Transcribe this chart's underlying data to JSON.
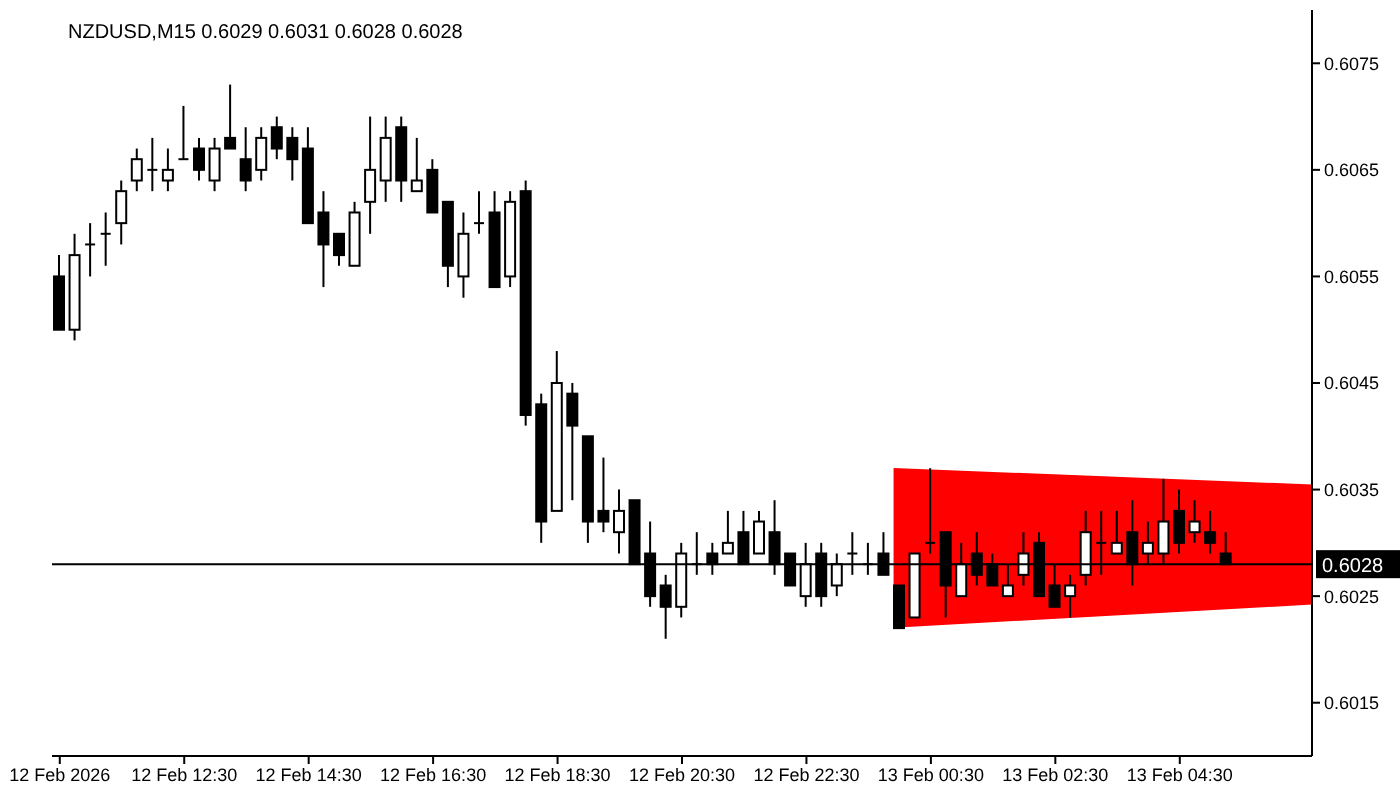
{
  "chart_data": {
    "type": "candlestick",
    "title": "NZDUSD,M15  0.6029 0.6031 0.6028 0.6028",
    "categories": [
      "12 Feb 2026",
      null,
      null,
      null,
      null,
      null,
      null,
      null,
      "12 Feb 12:30",
      null,
      null,
      null,
      null,
      null,
      null,
      null,
      "12 Feb 14:30",
      null,
      null,
      null,
      null,
      null,
      null,
      null,
      "12 Feb 16:30",
      null,
      null,
      null,
      null,
      null,
      null,
      null,
      "12 Feb 18:30",
      null,
      null,
      null,
      null,
      null,
      null,
      null,
      "12 Feb 20:30",
      null,
      null,
      null,
      null,
      null,
      null,
      null,
      "12 Feb 22:30",
      null,
      null,
      null,
      null,
      null,
      null,
      null,
      "13 Feb 00:30",
      null,
      null,
      null,
      null,
      null,
      null,
      null,
      "13 Feb 02:30",
      null,
      null,
      null,
      null,
      null,
      null,
      null,
      "13 Feb 04:30",
      null,
      null,
      null
    ],
    "ohlc": [
      [
        0.6055,
        0.6057,
        0.605,
        0.605
      ],
      [
        0.605,
        0.6059,
        0.6049,
        0.6057
      ],
      [
        0.6058,
        0.606,
        0.6055,
        0.6058
      ],
      [
        0.6059,
        0.6061,
        0.6056,
        0.6059
      ],
      [
        0.606,
        0.6064,
        0.6058,
        0.6063
      ],
      [
        0.6064,
        0.6067,
        0.6063,
        0.6066
      ],
      [
        0.6065,
        0.6068,
        0.6063,
        0.6065
      ],
      [
        0.6064,
        0.6067,
        0.6063,
        0.6065
      ],
      [
        0.6066,
        0.6071,
        0.6066,
        0.6066
      ],
      [
        0.6067,
        0.6068,
        0.6064,
        0.6065
      ],
      [
        0.6064,
        0.6068,
        0.6063,
        0.6067
      ],
      [
        0.6068,
        0.6073,
        0.6067,
        0.6067
      ],
      [
        0.6066,
        0.6069,
        0.6063,
        0.6064
      ],
      [
        0.6065,
        0.6069,
        0.6064,
        0.6068
      ],
      [
        0.6069,
        0.607,
        0.6066,
        0.6067
      ],
      [
        0.6068,
        0.6069,
        0.6064,
        0.6066
      ],
      [
        0.6067,
        0.6069,
        0.606,
        0.606
      ],
      [
        0.6061,
        0.6063,
        0.6054,
        0.6058
      ],
      [
        0.6059,
        0.6059,
        0.6056,
        0.6057
      ],
      [
        0.6056,
        0.6062,
        0.6056,
        0.6061
      ],
      [
        0.6062,
        0.607,
        0.6059,
        0.6065
      ],
      [
        0.6064,
        0.607,
        0.6062,
        0.6068
      ],
      [
        0.6069,
        0.607,
        0.6062,
        0.6064
      ],
      [
        0.6063,
        0.6068,
        0.6063,
        0.6064
      ],
      [
        0.6065,
        0.6066,
        0.6061,
        0.6061
      ],
      [
        0.6062,
        0.6062,
        0.6054,
        0.6056
      ],
      [
        0.6055,
        0.6061,
        0.6053,
        0.6059
      ],
      [
        0.606,
        0.6063,
        0.6059,
        0.606
      ],
      [
        0.6061,
        0.6063,
        0.6054,
        0.6054
      ],
      [
        0.6055,
        0.6063,
        0.6054,
        0.6062
      ],
      [
        0.6063,
        0.6064,
        0.6041,
        0.6042
      ],
      [
        0.6043,
        0.6044,
        0.603,
        0.6032
      ],
      [
        0.6033,
        0.6048,
        0.6033,
        0.6045
      ],
      [
        0.6044,
        0.6045,
        0.6034,
        0.6041
      ],
      [
        0.604,
        0.604,
        0.603,
        0.6032
      ],
      [
        0.6033,
        0.6038,
        0.6031,
        0.6032
      ],
      [
        0.6031,
        0.6035,
        0.6029,
        0.6033
      ],
      [
        0.6034,
        0.6034,
        0.6028,
        0.6028
      ],
      [
        0.6029,
        0.6032,
        0.6024,
        0.6025
      ],
      [
        0.6026,
        0.6027,
        0.6021,
        0.6024
      ],
      [
        0.6024,
        0.603,
        0.6023,
        0.6029
      ],
      [
        0.6028,
        0.6031,
        0.6027,
        0.6028
      ],
      [
        0.6029,
        0.603,
        0.6027,
        0.6028
      ],
      [
        0.6029,
        0.6033,
        0.6029,
        0.603
      ],
      [
        0.6031,
        0.6033,
        0.6028,
        0.6028
      ],
      [
        0.6029,
        0.6033,
        0.6029,
        0.6032
      ],
      [
        0.6031,
        0.6034,
        0.6027,
        0.6028
      ],
      [
        0.6029,
        0.6029,
        0.6026,
        0.6026
      ],
      [
        0.6025,
        0.603,
        0.6024,
        0.6028
      ],
      [
        0.6029,
        0.603,
        0.6024,
        0.6025
      ],
      [
        0.6026,
        0.6029,
        0.6025,
        0.6028
      ],
      [
        0.6029,
        0.6031,
        0.6027,
        0.6029
      ],
      [
        0.6028,
        0.603,
        0.6027,
        0.6028
      ],
      [
        0.6029,
        0.6031,
        0.6027,
        0.6027
      ],
      [
        0.6026,
        0.6026,
        0.6022,
        0.6022
      ],
      [
        0.6023,
        0.6029,
        0.6023,
        0.6029
      ],
      [
        0.603,
        0.6037,
        0.6029,
        0.603
      ],
      [
        0.6031,
        0.6031,
        0.6023,
        0.6026
      ],
      [
        0.6025,
        0.603,
        0.6025,
        0.6028
      ],
      [
        0.6029,
        0.6031,
        0.6026,
        0.6027
      ],
      [
        0.6028,
        0.6029,
        0.6026,
        0.6026
      ],
      [
        0.6025,
        0.6028,
        0.6025,
        0.6026
      ],
      [
        0.6027,
        0.6031,
        0.6026,
        0.6029
      ],
      [
        0.603,
        0.6031,
        0.6025,
        0.6025
      ],
      [
        0.6026,
        0.6028,
        0.6024,
        0.6024
      ],
      [
        0.6025,
        0.6027,
        0.6023,
        0.6026
      ],
      [
        0.6027,
        0.6033,
        0.6026,
        0.6031
      ],
      [
        0.603,
        0.6033,
        0.6027,
        0.603
      ],
      [
        0.6029,
        0.6033,
        0.6029,
        0.603
      ],
      [
        0.6031,
        0.6034,
        0.6026,
        0.6028
      ],
      [
        0.6029,
        0.6032,
        0.6028,
        0.603
      ],
      [
        0.6029,
        0.6036,
        0.6028,
        0.6032
      ],
      [
        0.6033,
        0.6035,
        0.6029,
        0.603
      ],
      [
        0.6031,
        0.6034,
        0.603,
        0.6032
      ],
      [
        0.6031,
        0.6033,
        0.6029,
        0.603
      ],
      [
        0.6029,
        0.6031,
        0.6028,
        0.6028
      ]
    ],
    "ylim": [
      0.601,
      0.608
    ],
    "yticks": [
      0.6015,
      0.6025,
      0.6035,
      0.6045,
      0.6055,
      0.6065,
      0.6075
    ],
    "ref_lines": [
      {
        "axis": "y",
        "value": 0.6028,
        "label": "0.6028",
        "color": "#000000"
      }
    ]
  }
}
